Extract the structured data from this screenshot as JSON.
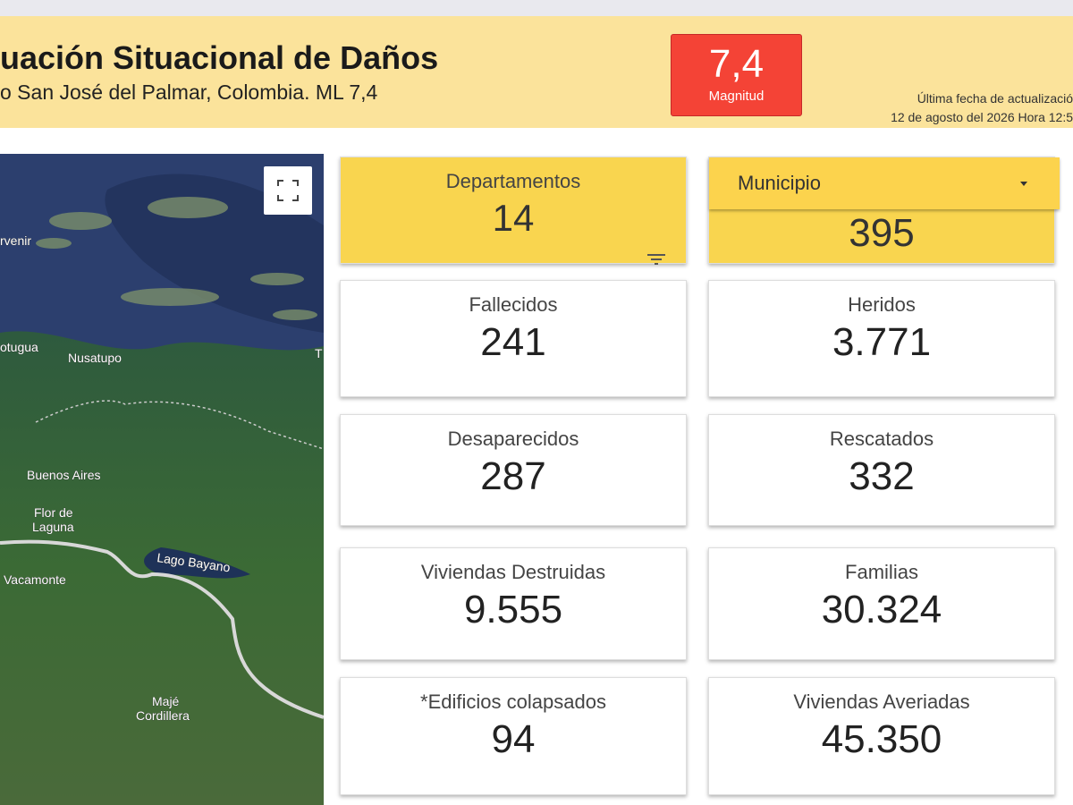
{
  "header": {
    "title": "uación Situacional de Daños",
    "subtitle": "o San José del Palmar, Colombia. ML 7,4",
    "magnitude": {
      "value": "7,4",
      "label": "Magnitud"
    },
    "update_label": "Última fecha de actualizació",
    "update_date": "12 de agosto del 2026 Hora  12:5"
  },
  "map": {
    "labels": [
      [
        "rvenir"
      ],
      [
        "otugua"
      ],
      [
        "Nusatupo"
      ],
      [
        "T"
      ],
      [
        "Buenos Aires"
      ],
      [
        "Flor de",
        "Laguna"
      ],
      [
        "Lago Bayano"
      ],
      [
        "Vacamonte"
      ],
      [
        "Majé",
        "Cordillera"
      ]
    ]
  },
  "cards": [
    {
      "label": "Departamentos",
      "value": "14"
    },
    {
      "label": "Municipio",
      "value": "395"
    },
    {
      "label": "Fallecidos",
      "value": "241"
    },
    {
      "label": "Heridos",
      "value": "3.771"
    },
    {
      "label": "Desaparecidos",
      "value": "287"
    },
    {
      "label": "Rescatados",
      "value": "332"
    },
    {
      "label": "Viviendas Destruidas",
      "value": "9.555"
    },
    {
      "label": "Familias",
      "value": "30.324"
    },
    {
      "label": "*Edificios colapsados",
      "value": "94"
    },
    {
      "label": "Viviendas Averiadas",
      "value": "45.350"
    }
  ]
}
